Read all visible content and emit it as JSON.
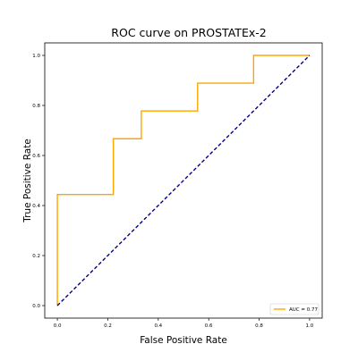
{
  "chart_data": {
    "type": "line",
    "title": "ROC curve on PROSTATEx-2",
    "xlabel": "False Positive Rate",
    "ylabel": "True Positive Rate",
    "xlim": [
      -0.05,
      1.05
    ],
    "ylim": [
      -0.05,
      1.05
    ],
    "x_ticks": [
      "0.0",
      "0.2",
      "0.4",
      "0.6",
      "0.8",
      "1.0"
    ],
    "y_ticks": [
      "0.0",
      "0.2",
      "0.4",
      "0.6",
      "0.8",
      "1.0"
    ],
    "grid": false,
    "legend_position": "lower right",
    "series": [
      {
        "name": "AUC = 0.77",
        "style": "solid",
        "color": "#FFA500",
        "x": [
          0.0,
          0.0,
          0.222,
          0.222,
          0.333,
          0.333,
          0.556,
          0.556,
          0.778,
          0.778,
          1.0
        ],
        "y": [
          0.0,
          0.444,
          0.444,
          0.667,
          0.667,
          0.778,
          0.778,
          0.889,
          0.889,
          1.0,
          1.0
        ]
      },
      {
        "style": "dashed",
        "color": "#00008B",
        "x": [
          0.0,
          1.0
        ],
        "y": [
          0.0,
          1.0
        ]
      }
    ]
  }
}
